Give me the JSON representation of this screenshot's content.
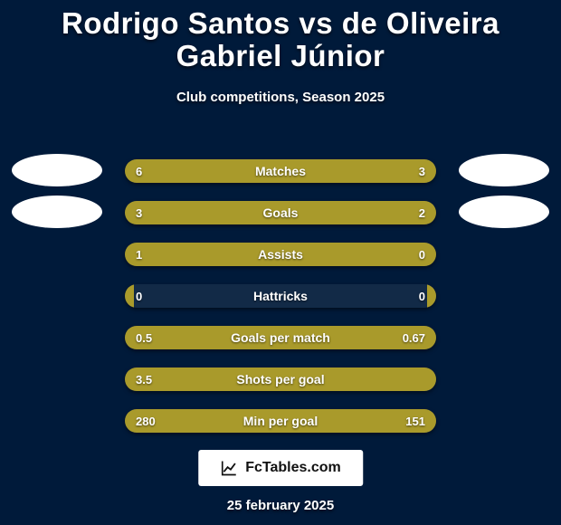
{
  "title": "Rodrigo Santos vs de Oliveira Gabriel Júnior",
  "subtitle": "Club competitions, Season 2025",
  "date": "25 february 2025",
  "branding_text": "FcTables.com",
  "colors": {
    "background": "#001a3a",
    "left": "#a99a2b",
    "right": "#a99a2b",
    "track": "rgba(255,255,255,0.07)",
    "logo_bg": "#ffffff"
  },
  "logos": {
    "left": [
      {
        "shape": "ellipse"
      },
      {
        "shape": "ellipse"
      }
    ],
    "right": [
      {
        "shape": "ellipse"
      },
      {
        "shape": "ellipse"
      }
    ]
  },
  "rows": [
    {
      "label": "Matches",
      "left_display": "6",
      "right_display": "3",
      "left_val": 6,
      "right_val": 3,
      "left_pct": 64,
      "right_pct": 36
    },
    {
      "label": "Goals",
      "left_display": "3",
      "right_display": "2",
      "left_val": 3,
      "right_val": 2,
      "left_pct": 58,
      "right_pct": 42
    },
    {
      "label": "Assists",
      "left_display": "1",
      "right_display": "0",
      "left_val": 1,
      "right_val": 0,
      "left_pct": 76,
      "right_pct": 24
    },
    {
      "label": "Hattricks",
      "left_display": "0",
      "right_display": "0",
      "left_val": 0,
      "right_val": 0,
      "left_pct": 3,
      "right_pct": 3
    },
    {
      "label": "Goals per match",
      "left_display": "0.5",
      "right_display": "0.67",
      "left_val": 0.5,
      "right_val": 0.67,
      "left_pct": 49,
      "right_pct": 51
    },
    {
      "label": "Shots per goal",
      "left_display": "3.5",
      "right_display": "",
      "left_val": 3.5,
      "right_val": 0,
      "left_pct": 97,
      "right_pct": 3
    },
    {
      "label": "Min per goal",
      "left_display": "280",
      "right_display": "151",
      "left_val": 280,
      "right_val": 151,
      "left_pct": 64,
      "right_pct": 36
    }
  ]
}
